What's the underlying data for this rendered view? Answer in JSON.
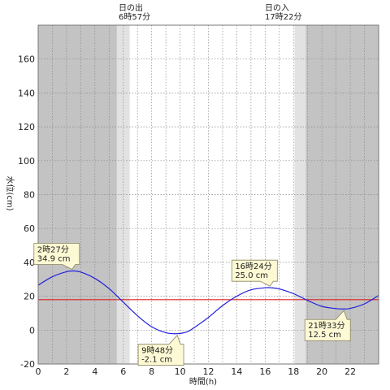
{
  "chart_data": {
    "type": "line",
    "xlabel": "時間(h)",
    "ylabel": "水位(cm)",
    "xlim": [
      0,
      24
    ],
    "ylim": [
      -20,
      180
    ],
    "x_ticks": [
      0,
      2,
      4,
      6,
      8,
      10,
      12,
      14,
      16,
      18,
      20,
      22
    ],
    "y_ticks": [
      -20,
      0,
      20,
      40,
      60,
      80,
      100,
      120,
      140,
      160
    ],
    "reference_level": 18,
    "sunrise": {
      "label": "日の出",
      "time_text": "6時57分",
      "hour": 6.95
    },
    "sunset": {
      "label": "日の入",
      "time_text": "17時22分",
      "hour": 17.37
    },
    "series": [
      {
        "x": [
          0,
          1,
          2,
          2.45,
          3,
          4,
          5,
          6,
          7,
          8,
          9,
          9.8,
          10.5,
          11,
          12,
          13,
          14,
          15,
          16,
          16.4,
          17,
          18,
          19,
          20,
          21,
          21.55,
          22,
          23,
          24
        ],
        "values": [
          26.5,
          31.5,
          34.5,
          34.9,
          34.3,
          30.5,
          24.5,
          16.5,
          8.5,
          2,
          -1.5,
          -2.1,
          -1,
          1.5,
          7.5,
          14.5,
          20,
          23.8,
          25,
          25,
          24.3,
          21.5,
          17.5,
          14,
          12.7,
          12.5,
          12.8,
          15.5,
          20.5
        ]
      }
    ],
    "annotations": [
      {
        "time": "2時27分",
        "value": "34.9 cm",
        "x": 2.45,
        "y": 34.9,
        "placement": "above"
      },
      {
        "time": "9時48分",
        "value": "-2.1 cm",
        "x": 9.8,
        "y": -2.1,
        "placement": "below"
      },
      {
        "time": "16時24分",
        "value": "25.0 cm",
        "x": 16.4,
        "y": 25.0,
        "placement": "above"
      },
      {
        "time": "21時33分",
        "value": "12.5 cm",
        "x": 21.55,
        "y": 12.5,
        "placement": "below"
      }
    ],
    "grid": true,
    "colors": {
      "night": "#c3c3c3",
      "twilight": "#e2e2e2",
      "day": "#ffffff",
      "line": "#1f1fdd",
      "reference": "#dd2222",
      "callout_fill": "#fdf9d4",
      "callout_stroke": "#8a8660"
    }
  }
}
